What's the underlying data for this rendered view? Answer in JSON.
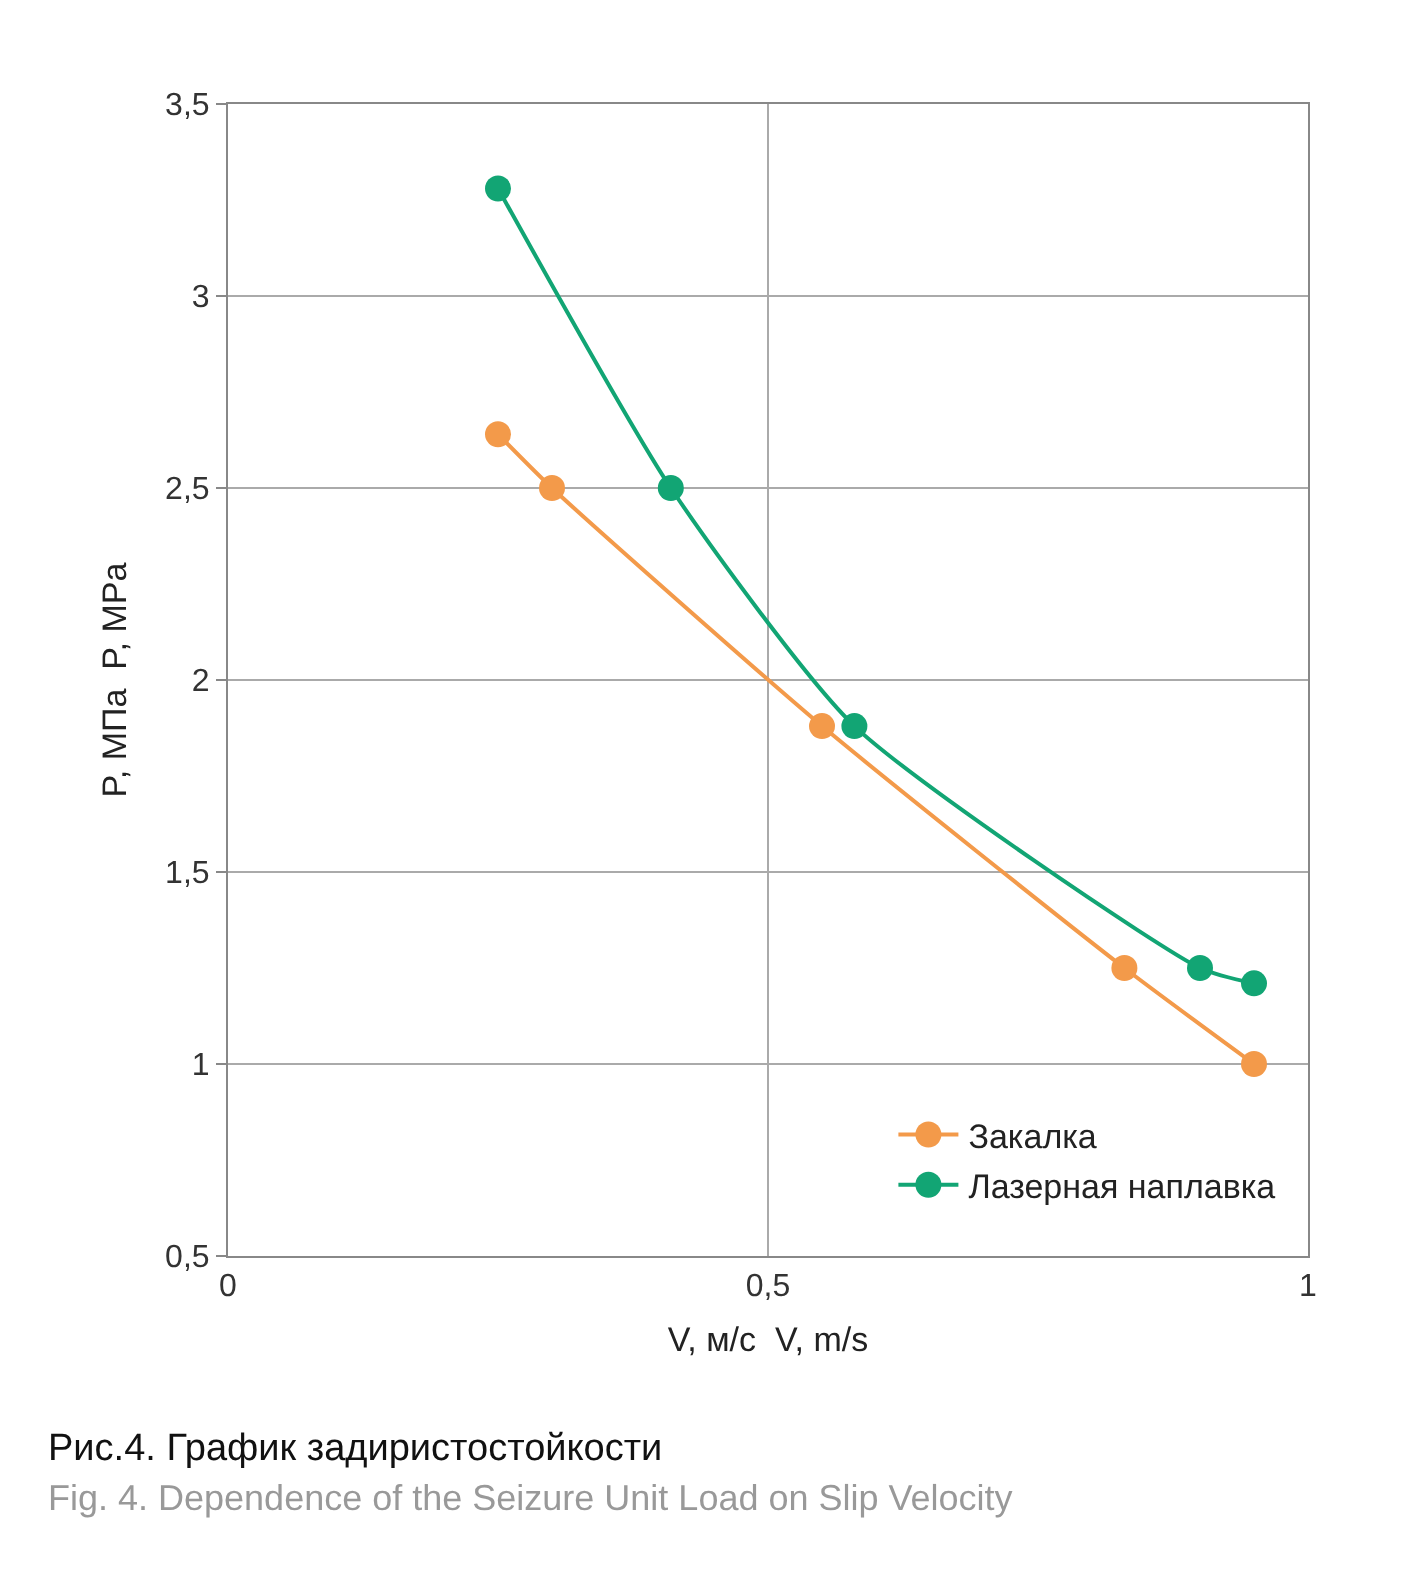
{
  "chart_data": {
    "type": "line",
    "xlabel": "V, м/с  V, m/s",
    "ylabel": "P, МПа  P, MPa",
    "annotations": [
      "Рис.4. График задиристостойкости",
      "Fig. 4. Dependence of the Seizure Unit Load on Slip Velocity"
    ],
    "series": [
      {
        "name": "Закалка",
        "color": "#f39a4a",
        "x": [
          0.25,
          0.3,
          0.55,
          0.83,
          0.95
        ],
        "values": [
          2.64,
          2.5,
          1.88,
          1.25,
          1.0
        ]
      },
      {
        "name": "Лазерная наплавка",
        "color": "#12a574",
        "x": [
          0.25,
          0.41,
          0.58,
          0.9,
          0.95
        ],
        "values": [
          3.28,
          2.5,
          1.88,
          1.25,
          1.21
        ]
      }
    ],
    "xlim": [
      0,
      1
    ],
    "xticks": [
      0,
      {
        "value": 0.5,
        "label": "0,5"
      },
      1
    ],
    "ylim": [
      0.5,
      3.5
    ],
    "yticks": [
      {
        "value": 0.5,
        "label": "0,5"
      },
      1,
      {
        "value": 1.5,
        "label": "1,5"
      },
      2,
      {
        "value": 2.5,
        "label": "2,5"
      },
      3,
      {
        "value": 3.5,
        "label": "3,5"
      }
    ],
    "grid": true,
    "legend": "bottom right",
    "marker": "circle",
    "line_style": "solid"
  }
}
